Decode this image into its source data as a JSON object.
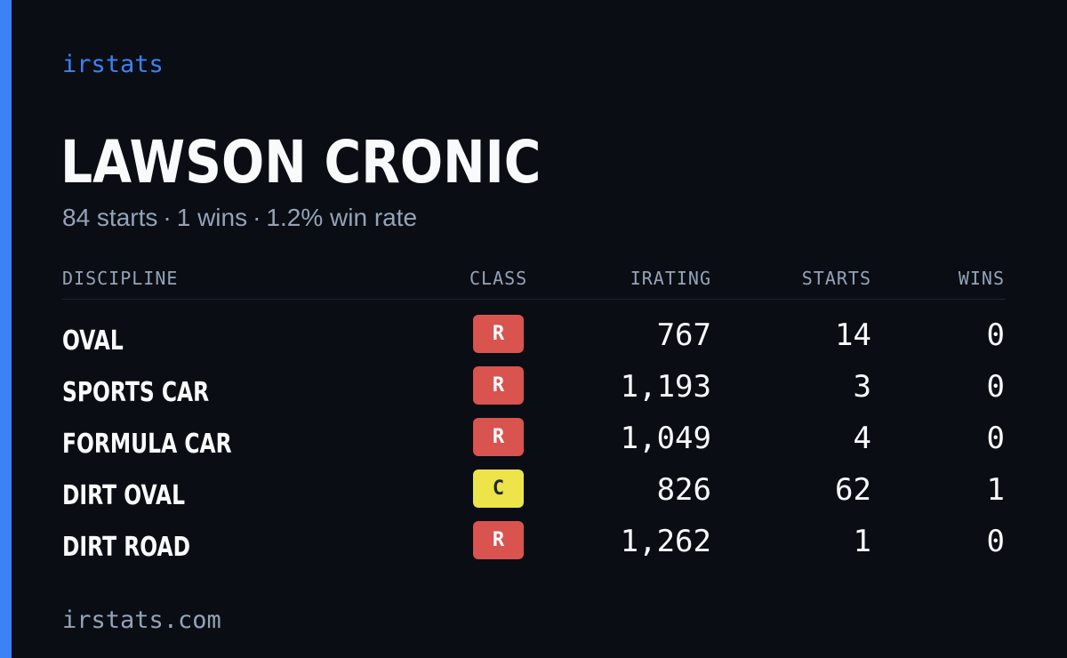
{
  "brand": "irstats",
  "driver": {
    "name": "LAWSON CRONIC",
    "starts": "84 starts",
    "wins": "1 wins",
    "win_rate": "1.2% win rate",
    "separator": "·"
  },
  "table": {
    "headers": {
      "discipline": "DISCIPLINE",
      "class": "CLASS",
      "irating": "IRATING",
      "starts": "STARTS",
      "wins": "WINS"
    },
    "rows": [
      {
        "discipline": "OVAL",
        "class": "R",
        "irating": "767",
        "starts": "14",
        "wins": "0"
      },
      {
        "discipline": "SPORTS CAR",
        "class": "R",
        "irating": "1,193",
        "starts": "3",
        "wins": "0"
      },
      {
        "discipline": "FORMULA CAR",
        "class": "R",
        "irating": "1,049",
        "starts": "4",
        "wins": "0"
      },
      {
        "discipline": "DIRT OVAL",
        "class": "C",
        "irating": "826",
        "starts": "62",
        "wins": "1"
      },
      {
        "discipline": "DIRT ROAD",
        "class": "R",
        "irating": "1,262",
        "starts": "1",
        "wins": "0"
      }
    ]
  },
  "footer": "irstats.com",
  "colors": {
    "background": "#0a0d14",
    "accent": "#3b82f6",
    "class_r": "#d9534f",
    "class_c": "#ede44a",
    "muted_text": "#94a3b8"
  }
}
